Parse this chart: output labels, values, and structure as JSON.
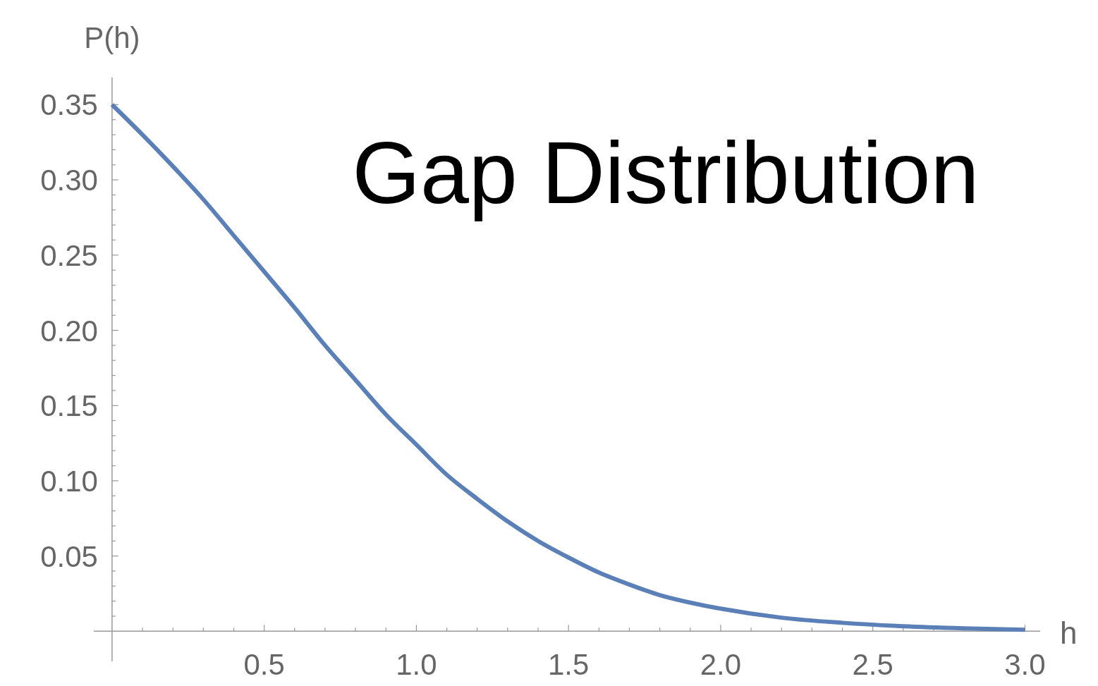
{
  "chart_data": {
    "type": "line",
    "title": "Gap Distribution",
    "xlabel": "h",
    "ylabel": "P(h)",
    "xlim": [
      -0.06,
      3.05
    ],
    "ylim": [
      -0.02,
      0.368
    ],
    "xticks": [
      {
        "value": 0.1,
        "label": null
      },
      {
        "value": 0.2,
        "label": null
      },
      {
        "value": 0.3,
        "label": null
      },
      {
        "value": 0.4,
        "label": null
      },
      0.5,
      {
        "value": 0.6,
        "label": null
      },
      {
        "value": 0.7,
        "label": null
      },
      {
        "value": 0.8,
        "label": null
      },
      {
        "value": 0.9,
        "label": null
      },
      {
        "value": 1.0,
        "label": "1.0"
      },
      {
        "value": 1.1,
        "label": null
      },
      {
        "value": 1.2,
        "label": null
      },
      {
        "value": 1.3,
        "label": null
      },
      {
        "value": 1.4,
        "label": null
      },
      1.5,
      {
        "value": 1.6,
        "label": null
      },
      {
        "value": 1.7,
        "label": null
      },
      {
        "value": 1.8,
        "label": null
      },
      {
        "value": 1.9,
        "label": null
      },
      {
        "value": 2.0,
        "label": "2.0"
      },
      {
        "value": 2.1,
        "label": null
      },
      {
        "value": 2.2,
        "label": null
      },
      {
        "value": 2.3,
        "label": null
      },
      {
        "value": 2.4,
        "label": null
      },
      2.5,
      {
        "value": 2.6,
        "label": null
      },
      {
        "value": 2.7,
        "label": null
      },
      {
        "value": 2.8,
        "label": null
      },
      {
        "value": 2.9,
        "label": null
      },
      {
        "value": 3.0,
        "label": "3.0"
      }
    ],
    "yticks": [
      {
        "value": 0.01,
        "label": null
      },
      {
        "value": 0.02,
        "label": null
      },
      {
        "value": 0.03,
        "label": null
      },
      {
        "value": 0.04,
        "label": null
      },
      0.05,
      {
        "value": 0.06,
        "label": null
      },
      {
        "value": 0.07,
        "label": null
      },
      {
        "value": 0.08,
        "label": null
      },
      {
        "value": 0.09,
        "label": null
      },
      {
        "value": 0.1,
        "label": "0.10"
      },
      {
        "value": 0.11,
        "label": null
      },
      {
        "value": 0.12,
        "label": null
      },
      {
        "value": 0.13,
        "label": null
      },
      {
        "value": 0.14,
        "label": null
      },
      0.15,
      {
        "value": 0.16,
        "label": null
      },
      {
        "value": 0.17,
        "label": null
      },
      {
        "value": 0.18,
        "label": null
      },
      {
        "value": 0.19,
        "label": null
      },
      {
        "value": 0.2,
        "label": "0.20"
      },
      {
        "value": 0.21,
        "label": null
      },
      {
        "value": 0.22,
        "label": null
      },
      {
        "value": 0.23,
        "label": null
      },
      {
        "value": 0.24,
        "label": null
      },
      0.25,
      {
        "value": 0.26,
        "label": null
      },
      {
        "value": 0.27,
        "label": null
      },
      {
        "value": 0.28,
        "label": null
      },
      {
        "value": 0.29,
        "label": null
      },
      {
        "value": 0.3,
        "label": "0.30"
      },
      {
        "value": 0.31,
        "label": null
      },
      {
        "value": 0.32,
        "label": null
      },
      {
        "value": 0.33,
        "label": null
      },
      {
        "value": 0.34,
        "label": null
      },
      0.35
    ],
    "x": [
      0,
      0.1,
      0.2,
      0.3,
      0.4,
      0.5,
      0.6,
      0.7,
      0.8,
      0.9,
      1.0,
      1.1,
      1.2,
      1.3,
      1.4,
      1.5,
      1.6,
      1.7,
      1.8,
      1.9,
      2.0,
      2.2,
      2.4,
      2.6,
      2.8,
      3.0
    ],
    "series": [
      {
        "color": "#5b80b8",
        "values": [
          0.35,
          0.33,
          0.309,
          0.287,
          0.263,
          0.239,
          0.215,
          0.19,
          0.167,
          0.144,
          0.124,
          0.104,
          0.088,
          0.073,
          0.06,
          0.049,
          0.039,
          0.031,
          0.024,
          0.019,
          0.015,
          0.009,
          0.0056,
          0.0033,
          0.0019,
          0.001
        ]
      }
    ],
    "marker": "none",
    "line_style": "solid"
  }
}
